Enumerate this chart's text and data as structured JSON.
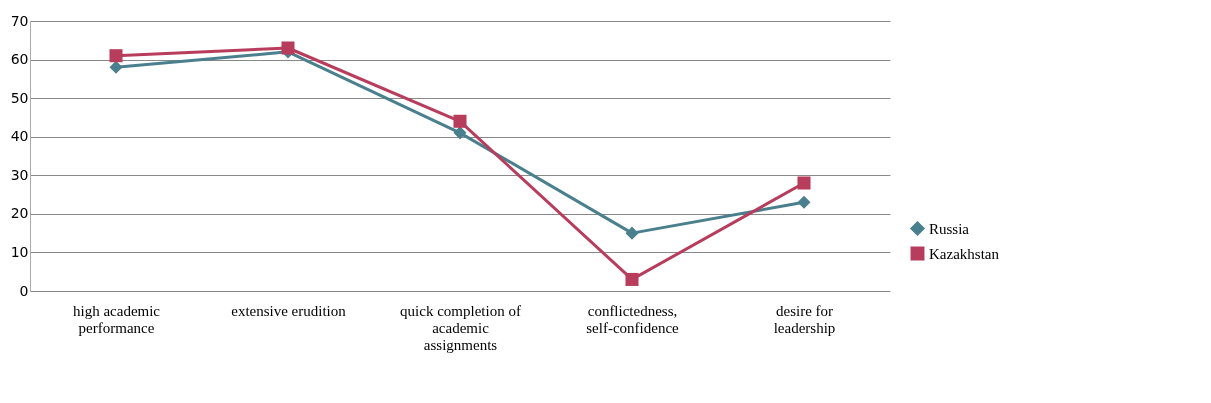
{
  "chart_data": {
    "type": "line",
    "categories": [
      "high academic performance",
      "extensive erudition",
      "quick completion of academic assignments",
      "conflictedness, self-confidence",
      "desire for leadership"
    ],
    "series": [
      {
        "name": "Russia",
        "color": "#4a7f8e",
        "marker": "diamond",
        "values": [
          58,
          62,
          41,
          15,
          23
        ]
      },
      {
        "name": "Kazakhstan",
        "color": "#b83c5c",
        "marker": "square",
        "values": [
          61,
          63,
          44,
          3,
          28
        ]
      }
    ],
    "ylim": [
      0,
      70
    ],
    "yticks": [
      0,
      10,
      20,
      30,
      40,
      50,
      60,
      70
    ],
    "grid": "y",
    "legend": "bottom right",
    "line_style": "solid"
  }
}
